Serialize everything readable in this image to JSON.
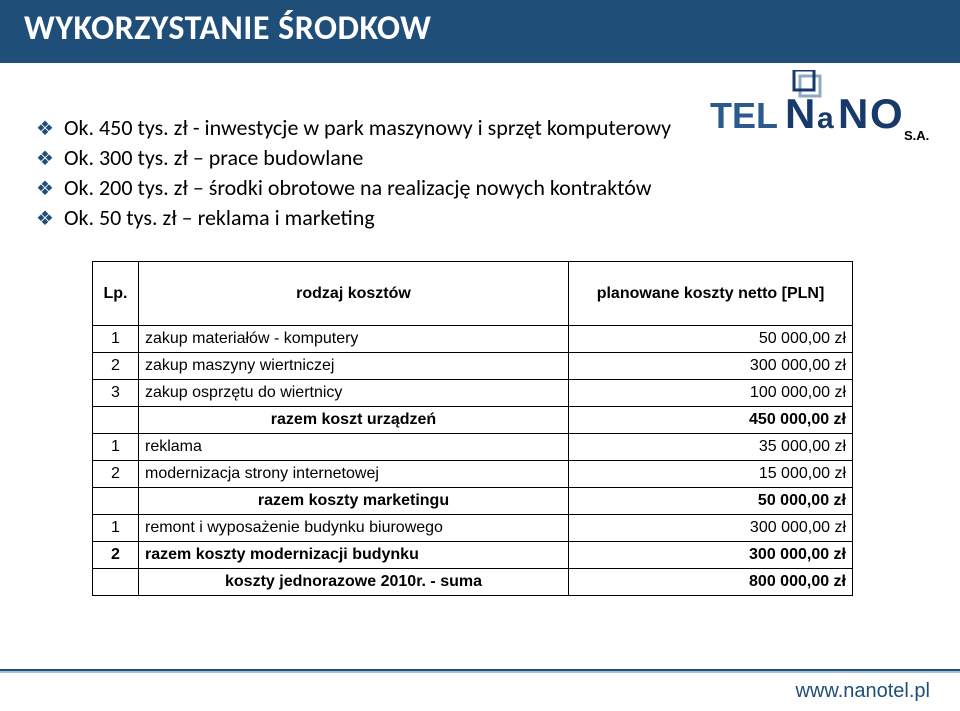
{
  "title": "WYKORZYSTANIE ŚRODKOW",
  "logo": {
    "tel": "TEL",
    "nano_n": "N",
    "nano_a1": "a",
    "nano_n2": "N",
    "nano_o": "O",
    "sa": "S.A.",
    "tel_color": "#2b5a8c",
    "nano_color": "#173a6b",
    "icon_outer": "#8fa8c4",
    "icon_inner": "#173a6b"
  },
  "bullets": [
    "Ok. 450 tys. zł - inwestycje w park maszynowy i sprzęt komputerowy",
    "Ok. 300 tys. zł – prace budowlane",
    "Ok. 200 tys. zł – środki obrotowe na realizację nowych kontraktów",
    "Ok. 50 tys. zł – reklama i marketing"
  ],
  "table": {
    "h_lp": "Lp.",
    "h_kind": "rodzaj kosztów",
    "h_plan": "planowane koszty netto [PLN]",
    "rows": [
      {
        "n": "1",
        "name": "zakup materiałów - komputery",
        "val": "50 000,00 zł",
        "bold": false
      },
      {
        "n": "2",
        "name": "zakup maszyny wiertniczej",
        "val": "300 000,00 zł",
        "bold": false
      },
      {
        "n": "3",
        "name": "zakup osprzętu do wiertnicy",
        "val": "100 000,00 zł",
        "bold": false
      },
      {
        "n": "",
        "name": "razem koszt urządzeń",
        "val": "450 000,00 zł",
        "bold": true,
        "center": true
      },
      {
        "n": "1",
        "name": "reklama",
        "val": "35 000,00 zł",
        "bold": false
      },
      {
        "n": "2",
        "name": "modernizacja strony internetowej",
        "val": "15 000,00 zł",
        "bold": false
      },
      {
        "n": "",
        "name": "razem koszty marketingu",
        "val": "50 000,00 zł",
        "bold": true,
        "center": true
      },
      {
        "n": "1",
        "name": "remont i wyposażenie budynku biurowego",
        "val": "300 000,00 zł",
        "bold": false
      },
      {
        "n": "2",
        "name": "razem koszty modernizacji budynku",
        "val": "300 000,00 zł",
        "bold": true
      },
      {
        "n": "",
        "name": "koszty jednorazowe 2010r. - suma",
        "val": "800 000,00 zł",
        "bold": true,
        "center": true
      }
    ]
  },
  "footer_url": "www.nanotel.pl"
}
